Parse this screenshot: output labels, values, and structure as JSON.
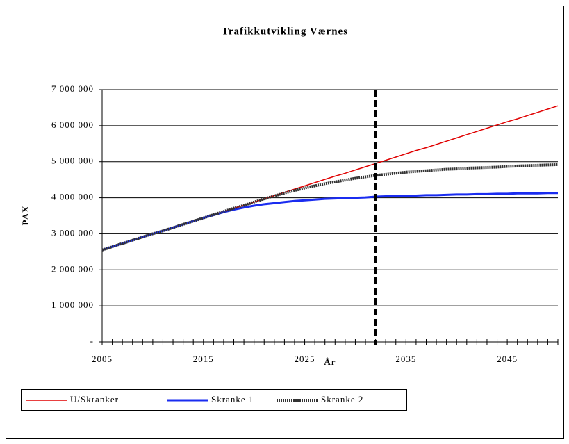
{
  "chart_data": {
    "type": "line",
    "title": "Trafikkutvikling Værnes",
    "x_label": "År",
    "y_label": "PAX",
    "x": [
      2005,
      2006,
      2007,
      2008,
      2009,
      2010,
      2011,
      2012,
      2013,
      2014,
      2015,
      2016,
      2017,
      2018,
      2019,
      2020,
      2021,
      2022,
      2023,
      2024,
      2025,
      2026,
      2027,
      2028,
      2029,
      2030,
      2031,
      2032,
      2033,
      2034,
      2035,
      2036,
      2037,
      2038,
      2039,
      2040,
      2041,
      2042,
      2043,
      2044,
      2045,
      2046,
      2047,
      2048,
      2049,
      2050
    ],
    "series": [
      {
        "name": "U/Skranker",
        "color": "#e00000",
        "values": [
          2550000,
          2640000,
          2730000,
          2820000,
          2910000,
          3000000,
          3080000,
          3170000,
          3260000,
          3350000,
          3440000,
          3530000,
          3620000,
          3710000,
          3790000,
          3880000,
          3970000,
          4060000,
          4150000,
          4240000,
          4330000,
          4420000,
          4510000,
          4600000,
          4680000,
          4770000,
          4860000,
          4950000,
          5040000,
          5130000,
          5220000,
          5310000,
          5390000,
          5480000,
          5570000,
          5660000,
          5750000,
          5840000,
          5930000,
          6020000,
          6110000,
          6190000,
          6280000,
          6370000,
          6460000,
          6550000
        ]
      },
      {
        "name": "Skranke 1",
        "color": "#1a2cf0",
        "values": [
          2550000,
          2640000,
          2730000,
          2820000,
          2910000,
          3000000,
          3080000,
          3170000,
          3260000,
          3350000,
          3440000,
          3520000,
          3600000,
          3670000,
          3730000,
          3780000,
          3820000,
          3850000,
          3880000,
          3910000,
          3930000,
          3950000,
          3970000,
          3980000,
          3990000,
          4000000,
          4010000,
          4030000,
          4040000,
          4050000,
          4050000,
          4060000,
          4070000,
          4070000,
          4080000,
          4090000,
          4090000,
          4100000,
          4100000,
          4110000,
          4110000,
          4120000,
          4120000,
          4120000,
          4130000,
          4130000
        ]
      },
      {
        "name": "Skranke 2",
        "color": "#333333",
        "values": [
          2550000,
          2640000,
          2730000,
          2820000,
          2910000,
          3000000,
          3080000,
          3170000,
          3260000,
          3350000,
          3440000,
          3530000,
          3620000,
          3710000,
          3790000,
          3880000,
          3970000,
          4050000,
          4130000,
          4200000,
          4270000,
          4330000,
          4390000,
          4440000,
          4490000,
          4540000,
          4580000,
          4620000,
          4650000,
          4680000,
          4710000,
          4730000,
          4750000,
          4770000,
          4790000,
          4800000,
          4820000,
          4830000,
          4840000,
          4850000,
          4870000,
          4880000,
          4890000,
          4900000,
          4910000,
          4920000
        ]
      }
    ],
    "xlim": [
      2005,
      2050
    ],
    "xticks": [
      2005,
      2015,
      2025,
      2035,
      2045
    ],
    "ylim": [
      0,
      7000000
    ],
    "yticks": [
      {
        "value": 0,
        "label": "-"
      },
      {
        "value": 1000000,
        "label": "1 000 000"
      },
      {
        "value": 2000000,
        "label": "2 000 000"
      },
      {
        "value": 3000000,
        "label": "3 000 000"
      },
      {
        "value": 4000000,
        "label": "4 000 000"
      },
      {
        "value": 5000000,
        "label": "5 000 000"
      },
      {
        "value": 6000000,
        "label": "6 000 000"
      },
      {
        "value": 7000000,
        "label": "7 000 000"
      }
    ],
    "vline": 2032,
    "grid": true,
    "legend": "bottom"
  }
}
